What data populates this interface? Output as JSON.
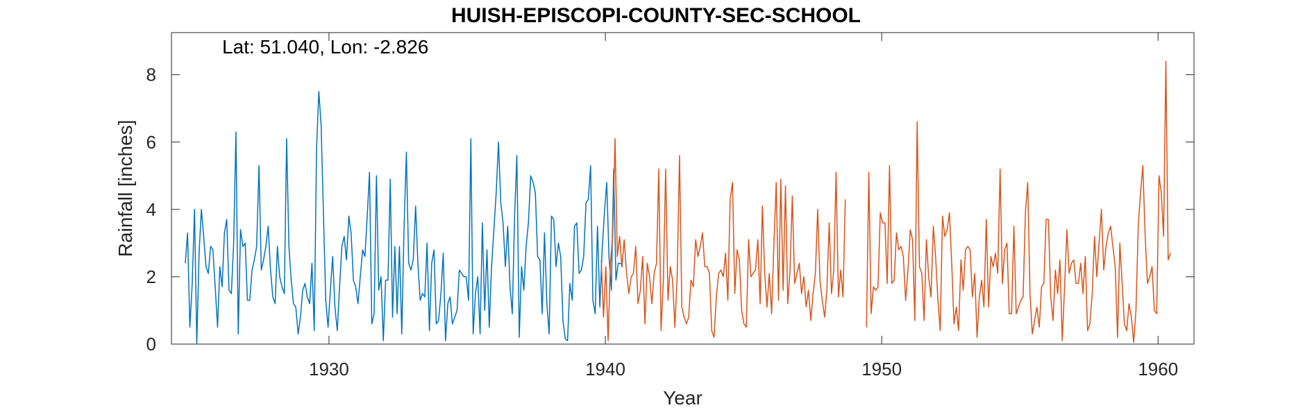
{
  "chart_data": {
    "type": "line",
    "title": "HUISH-EPISCOPI-COUNTY-SEC-SCHOOL",
    "xlabel": "Year",
    "ylabel": "Rainfall [inches]",
    "annotation": "Lat: 51.040, Lon: -2.826",
    "xlim": [
      1924.3,
      1961.3
    ],
    "ylim": [
      0,
      9.25
    ],
    "xticks": [
      1930,
      1940,
      1950,
      1960
    ],
    "yticks": [
      0,
      2,
      4,
      6,
      8
    ],
    "grid": false,
    "series": [
      {
        "color": "#0072BD",
        "x_start": 1924.8,
        "step": 0.0833333,
        "values": [
          2.4,
          3.3,
          0.5,
          1.8,
          4.0,
          0.0,
          2.7,
          4.0,
          3.2,
          2.3,
          2.1,
          2.9,
          2.8,
          1.7,
          0.5,
          2.3,
          1.7,
          3.3,
          3.7,
          1.6,
          1.5,
          3.0,
          6.3,
          0.3,
          3.4,
          2.9,
          3.0,
          1.3,
          1.3,
          2.2,
          2.5,
          2.9,
          5.3,
          2.2,
          2.5,
          2.9,
          3.5,
          2.2,
          1.4,
          1.2,
          2.9,
          2.0,
          1.7,
          1.5,
          6.1,
          2.9,
          1.9,
          1.2,
          1.1,
          0.3,
          0.8,
          1.6,
          1.8,
          1.4,
          1.2,
          2.4,
          0.4,
          5.8,
          7.5,
          6.5,
          3.8,
          1.3,
          0.5,
          1.6,
          2.6,
          1.1,
          0.4,
          1.7,
          2.9,
          3.2,
          2.5,
          3.8,
          3.3,
          1.9,
          1.7,
          1.2,
          2.0,
          2.8,
          2.6,
          3.8,
          5.1,
          0.6,
          0.9,
          5.0,
          1.6,
          2.0,
          0.1,
          1.9,
          1.9,
          4.9,
          0.8,
          2.9,
          0.9,
          2.9,
          0.3,
          3.5,
          5.7,
          2.4,
          2.2,
          2.5,
          4.1,
          2.4,
          1.3,
          1.5,
          1.4,
          3.0,
          0.4,
          2.4,
          2.8,
          0.6,
          0.7,
          1.5,
          2.7,
          0.1,
          1.2,
          1.4,
          0.6,
          0.8,
          1.0,
          2.2,
          2.1,
          2.0,
          2.0,
          1.3,
          6.1,
          0.3,
          1.5,
          2.0,
          0.3,
          3.6,
          1.0,
          2.8,
          0.5,
          2.3,
          3.4,
          4.5,
          6.0,
          4.2,
          3.6,
          2.3,
          3.5,
          1.7,
          0.9,
          3.8,
          5.6,
          0.2,
          2.3,
          1.6,
          2.9,
          3.6,
          5.0,
          4.8,
          4.5,
          2.6,
          2.5,
          0.9,
          3.3,
          1.2,
          0.3,
          3.8,
          3.7,
          2.3,
          3.0,
          2.6,
          0.7,
          0.15,
          0.1,
          1.8,
          1.3,
          3.5,
          3.6,
          2.1,
          2.2,
          2.6,
          4.2,
          4.3,
          5.3,
          1.3,
          0.9,
          3.5,
          1.1,
          2.8,
          3.9,
          4.8,
          2.6,
          1.6,
          5.2,
          1.9,
          2.4,
          2.4,
          2.3
        ]
      },
      {
        "color": "#D95319",
        "x_start": 1939.85,
        "step": 0.0833333,
        "values": [
          2.5,
          0.8,
          2.3,
          0.1,
          2.4,
          3.2,
          6.1,
          2.6,
          3.2,
          2.3,
          3.1,
          2.1,
          1.5,
          2.0,
          2.1,
          2.9,
          1.2,
          1.6,
          2.6,
          0.6,
          2.4,
          2.0,
          1.2,
          2.1,
          2.4,
          5.2,
          0.4,
          1.9,
          5.2,
          1.3,
          2.3,
          1.9,
          0.5,
          2.0,
          5.6,
          1.1,
          0.8,
          0.6,
          0.8,
          1.9,
          1.7,
          3.1,
          2.6,
          2.9,
          3.3,
          2.3,
          2.3,
          2.1,
          0.4,
          0.2,
          1.4,
          2.1,
          2.2,
          2.0,
          2.7,
          1.3,
          4.3,
          4.8,
          1.5,
          2.8,
          2.5,
          1.0,
          0.6,
          0.5,
          3.1,
          2.0,
          2.1,
          2.2,
          3.1,
          1.2,
          4.1,
          2.1,
          1.1,
          2.1,
          0.9,
          3.0,
          4.8,
          1.3,
          4.9,
          1.6,
          4.7,
          1.2,
          2.2,
          4.4,
          1.8,
          2.1,
          2.4,
          1.5,
          2.0,
          1.1,
          1.6,
          0.7,
          1.5,
          2.1,
          4.0,
          1.9,
          1.3,
          0.8,
          1.6,
          3.6,
          1.5,
          2.2,
          5.1,
          1.4,
          2.2,
          1.4,
          4.3
        ],
        "gap_after_index": 106
      },
      {
        "color": "#D95319",
        "x_start": 1949.45,
        "step": 0.0833333,
        "values": [
          0.5,
          5.1,
          0.9,
          1.7,
          1.6,
          1.7,
          3.9,
          3.6,
          3.6,
          1.8,
          5.3,
          1.8,
          1.9,
          3.3,
          2.8,
          2.9,
          2.6,
          1.3,
          2.2,
          3.4,
          3.1,
          0.7,
          6.6,
          2.3,
          2.1,
          0.7,
          3.1,
          2.0,
          1.4,
          3.5,
          2.6,
          1.3,
          0.4,
          3.8,
          3.2,
          3.4,
          3.9,
          2.4,
          0.6,
          1.1,
          0.4,
          2.5,
          1.6,
          2.8,
          2.9,
          2.8,
          1.4,
          2.1,
          0.2,
          1.4,
          1.9,
          1.1,
          3.7,
          1.1,
          2.6,
          2.3,
          2.7,
          2.1,
          5.2,
          1.8,
          2.8,
          3.0,
          0.9,
          0.9,
          3.5,
          0.9,
          1.1,
          1.3,
          1.4,
          3.9,
          4.8,
          1.5,
          0.3,
          0.7,
          1.1,
          0.5,
          1.7,
          1.8,
          3.7,
          3.7,
          1.4,
          0.7,
          2.2,
          1.5,
          2.5,
          0.1,
          1.7,
          3.4,
          2.1,
          2.4,
          2.5,
          1.8,
          1.8,
          2.4,
          1.5,
          2.6,
          0.4,
          0.6,
          1.5,
          3.2,
          2.0,
          3.0,
          4.0,
          2.2,
          2.9,
          3.3,
          3.5,
          2.9,
          2.3,
          0.2,
          3.0,
          1.8,
          0.6,
          0.4,
          1.2,
          0.8,
          0.05,
          1.0,
          3.5,
          4.5,
          5.3,
          3.2,
          1.8,
          2.0,
          2.3,
          1.0,
          0.9,
          5.0,
          4.5,
          3.2,
          8.4,
          2.5,
          2.7
        ]
      }
    ]
  }
}
